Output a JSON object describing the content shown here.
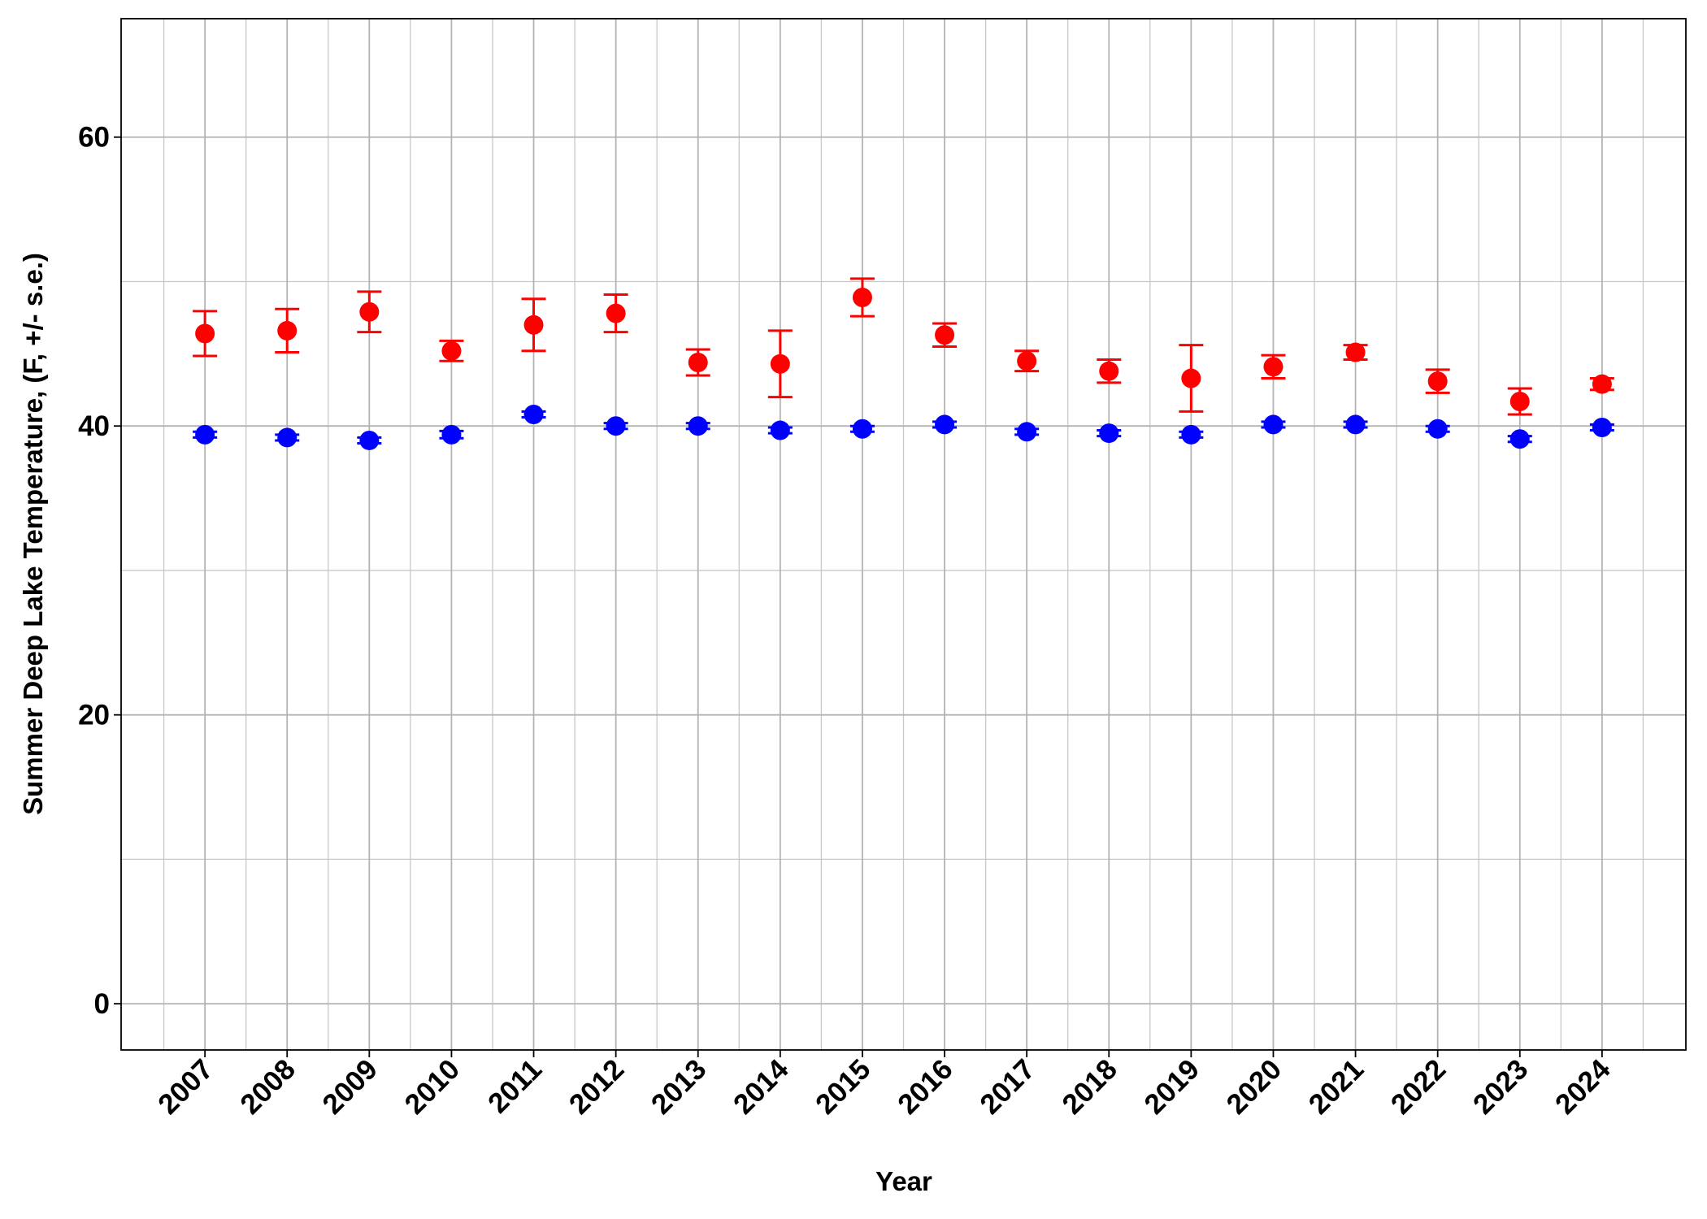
{
  "chart_data": {
    "type": "errorbar",
    "x_label": "Year",
    "y_label": "Summer Deep Lake Temperature, (F, +/- s.e.)",
    "categories": [
      "2007",
      "2008",
      "2009",
      "2010",
      "2011",
      "2012",
      "2013",
      "2014",
      "2015",
      "2016",
      "2017",
      "2018",
      "2019",
      "2020",
      "2021",
      "2022",
      "2023",
      "2024"
    ],
    "series": [
      {
        "color": "#ff0000",
        "values": [
          46.4,
          46.6,
          47.9,
          45.2,
          47.0,
          47.8,
          44.4,
          44.3,
          48.9,
          46.3,
          44.5,
          43.8,
          43.3,
          44.1,
          45.1,
          43.1,
          41.7,
          42.9
        ],
        "errors": [
          1.55,
          1.5,
          1.4,
          0.7,
          1.8,
          1.3,
          0.9,
          2.3,
          1.3,
          0.8,
          0.7,
          0.8,
          2.3,
          0.8,
          0.5,
          0.8,
          0.9,
          0.4
        ]
      },
      {
        "color": "#0000ff",
        "values": [
          39.4,
          39.2,
          39.0,
          39.4,
          40.8,
          40.0,
          40.0,
          39.7,
          39.8,
          40.1,
          39.6,
          39.5,
          39.4,
          40.1,
          40.1,
          39.8,
          39.1,
          39.9
        ],
        "errors": [
          0.2,
          0.2,
          0.2,
          0.25,
          0.2,
          0.2,
          0.2,
          0.2,
          0.2,
          0.2,
          0.2,
          0.2,
          0.2,
          0.2,
          0.2,
          0.2,
          0.2,
          0.2
        ]
      }
    ],
    "ylim": [
      -3.2,
      68.2
    ],
    "yticks": [
      0,
      20,
      40,
      60
    ],
    "yminorticks": [
      10,
      30,
      50
    ],
    "grid": true
  }
}
